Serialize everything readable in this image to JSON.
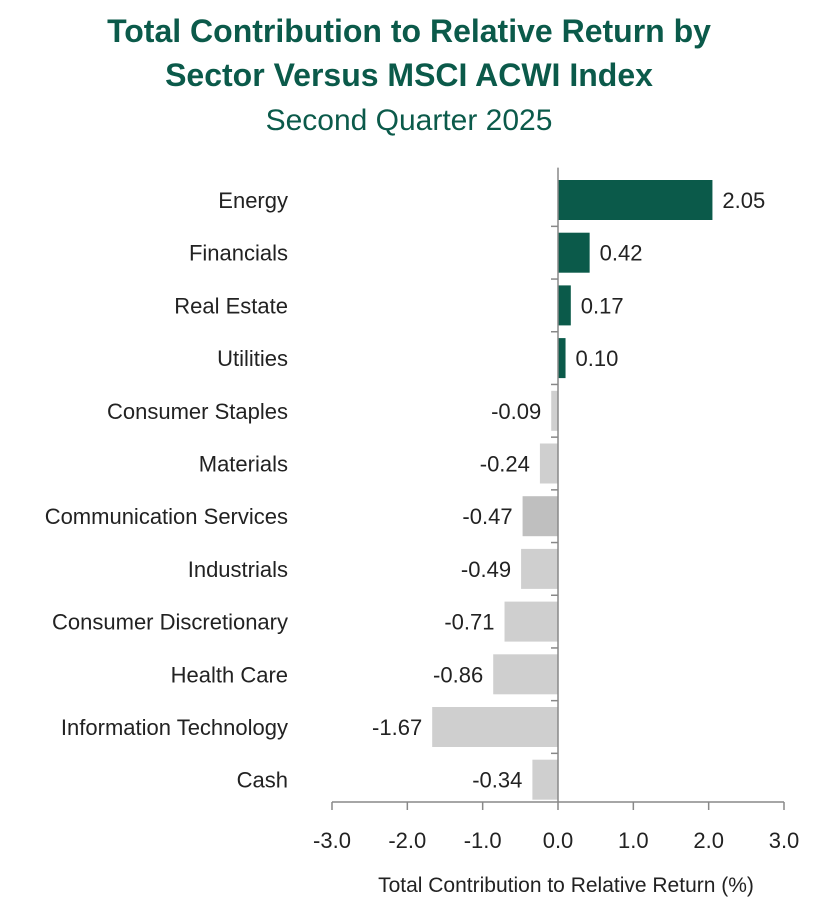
{
  "title_line1": "Total Contribution to Relative Return by",
  "title_line2": "Sector Versus MSCI ACWI Index",
  "subtitle": "Second Quarter 2025",
  "colors": {
    "positive": "#0b5a4a",
    "negative": "#cfcfcf",
    "negative_highlight": "#bfbfbf",
    "title": "#0b5a4a"
  },
  "chart_data": {
    "type": "bar",
    "orientation": "horizontal",
    "categories": [
      "Energy",
      "Financials",
      "Real Estate",
      "Utilities",
      "Consumer Staples",
      "Materials",
      "Communication Services",
      "Industrials",
      "Consumer Discretionary",
      "Health Care",
      "Information Technology",
      "Cash"
    ],
    "values": [
      2.05,
      0.42,
      0.17,
      0.1,
      -0.09,
      -0.24,
      -0.47,
      -0.49,
      -0.71,
      -0.86,
      -1.67,
      -0.34
    ],
    "value_labels": [
      "2.05",
      "0.42",
      "0.17",
      "0.10",
      "-0.09",
      "-0.24",
      "-0.47",
      "-0.49",
      "-0.71",
      "-0.86",
      "-1.67",
      "-0.34"
    ],
    "xlim": [
      -3.0,
      3.0
    ],
    "xticks": [
      -3.0,
      -2.0,
      -1.0,
      0.0,
      1.0,
      2.0,
      3.0
    ],
    "xtick_labels": [
      "-3.0",
      "-2.0",
      "-1.0",
      "0.0",
      "1.0",
      "2.0",
      "3.0"
    ],
    "xlabel": "Total Contribution to Relative Return (%)",
    "ylabel": "",
    "grid": false,
    "legend": "none"
  }
}
